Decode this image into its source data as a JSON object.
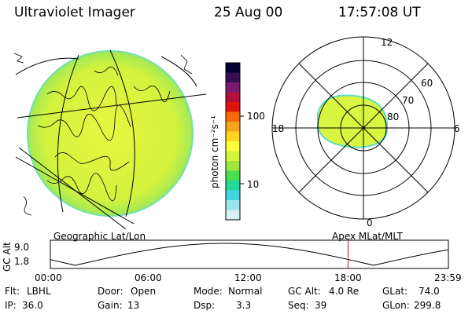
{
  "header": {
    "instrument": "Ultraviolet Imager",
    "date": "25 Aug 00",
    "time": "17:57:08 UT"
  },
  "colorbar": {
    "label": "photon cm⁻²s⁻¹",
    "ticks": [
      "100",
      "10"
    ],
    "colors": [
      "#000033",
      "#3a0d52",
      "#7a1a6e",
      "#b20f3a",
      "#e0160e",
      "#f76a08",
      "#f7a31c",
      "#ffd51f",
      "#ffff3d",
      "#d4f53a",
      "#9de83a",
      "#49e04d",
      "#23d99a",
      "#3fd6e0",
      "#9be5ee",
      "#d7f0f4"
    ]
  },
  "polar_plot": {
    "mlt_labels": [
      "12",
      "18",
      "6",
      "0"
    ],
    "lat_labels": [
      "60",
      "70",
      "80"
    ]
  },
  "altitude_plot": {
    "left_caption": "Geographic Lat/Lon",
    "right_caption": "Apex MLat/MLT",
    "ylabel": "GC Alt",
    "yticks": [
      "9.0",
      "1.8"
    ],
    "xticks": [
      "00:00",
      "06:00",
      "12:00",
      "18:00",
      "23:59"
    ],
    "marker_time_hours": 17.95
  },
  "status": {
    "filter": {
      "label": "Flt:",
      "value": "LBHL"
    },
    "ip": {
      "label": "IP:",
      "value": "36.0"
    },
    "door": {
      "label": "Door:",
      "value": "Open"
    },
    "gain": {
      "label": "Gain:",
      "value": "13"
    },
    "mode": {
      "label": "Mode:",
      "value": "Normal"
    },
    "dsp": {
      "label": "Dsp:",
      "value": "3.3"
    },
    "gc_alt": {
      "label": "GC Alt:",
      "value": "4.0 Re"
    },
    "seq": {
      "label": "Seq:",
      "value": "39"
    },
    "glat": {
      "label": "GLat:",
      "value": "74.0"
    },
    "glon": {
      "label": "GLon:",
      "value": "299.8"
    }
  },
  "colors": {
    "aurora_fill": "#d8f542",
    "aurora_edge": "#5fdcc8",
    "marker": "#c8102e"
  }
}
